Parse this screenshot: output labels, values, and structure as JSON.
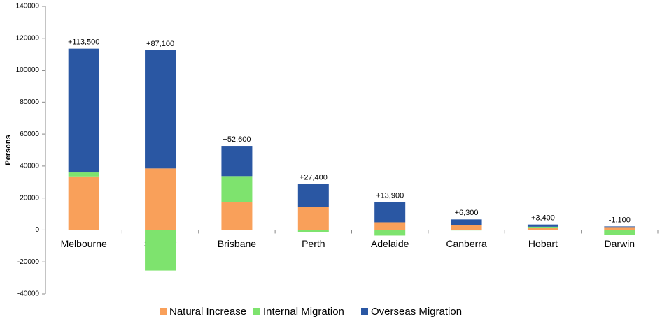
{
  "chart_data": {
    "type": "bar",
    "stacked": true,
    "y_label": "Persons",
    "categories": [
      "Melbourne",
      "Sydney",
      "Brisbane",
      "Perth",
      "Adelaide",
      "Canberra",
      "Hobart",
      "Darwin"
    ],
    "series": [
      {
        "name": "Natural Increase",
        "color": "#f9a05a",
        "values": [
          33500,
          38500,
          17500,
          14400,
          4800,
          3100,
          1300,
          1800
        ]
      },
      {
        "name": "Internal Migration",
        "color": "#7ee36e",
        "values": [
          2500,
          -25400,
          16200,
          -1300,
          -3500,
          -300,
          700,
          -3300
        ]
      },
      {
        "name": "Overseas Migration",
        "color": "#2a57a3",
        "values": [
          77500,
          74000,
          18900,
          14300,
          12600,
          3500,
          1400,
          400
        ]
      }
    ],
    "totals": {
      "values": [
        113500,
        87100,
        52600,
        27400,
        13900,
        6300,
        3400,
        -1100
      ],
      "value_labels": [
        "+113,500",
        "+87,100",
        "+52,600",
        "+27,400",
        "+13,900",
        "+6,300",
        "+3,400",
        "-1,100"
      ]
    },
    "ylim": [
      -40000,
      140000
    ],
    "yticks": [
      -40000,
      -20000,
      0,
      20000,
      40000,
      60000,
      80000,
      100000,
      120000,
      140000
    ],
    "legend": "bottom"
  }
}
